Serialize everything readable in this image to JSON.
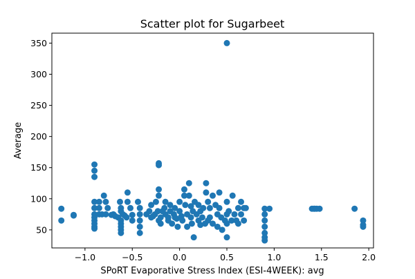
{
  "chart_data": {
    "type": "scatter",
    "title": "Scatter plot for Sugarbeet",
    "xlabel": "SPoRT Evaporative Stress Index (ESI-4WEEK): avg",
    "ylabel": "Average",
    "xlim": [
      -1.35,
      2.05
    ],
    "ylim": [
      21,
      366
    ],
    "xticks": [
      -1.0,
      -0.5,
      0.0,
      0.5,
      1.0,
      1.5,
      2.0
    ],
    "xtick_labels": [
      "−1.0",
      "−0.5",
      "0.0",
      "0.5",
      "1.0",
      "1.5",
      "2.0"
    ],
    "yticks": [
      50,
      100,
      150,
      200,
      250,
      300,
      350
    ],
    "ytick_labels": [
      "50",
      "100",
      "150",
      "200",
      "250",
      "300",
      "350"
    ],
    "grid": false,
    "marker_color": "#1f77b4",
    "series": [
      {
        "x": [
          -1.25,
          -1.25,
          -1.12,
          -1.12,
          -0.9,
          -0.9,
          -0.9,
          -0.9,
          -0.9,
          -0.9,
          -0.9,
          -0.9,
          -0.9,
          -0.9,
          -0.9,
          -0.85,
          -0.85,
          -0.85,
          -0.82,
          -0.8,
          -0.78,
          -0.78,
          -0.76,
          -0.72,
          -0.7,
          -0.68,
          -0.65,
          -0.63,
          -0.62,
          -0.62,
          -0.62,
          -0.62,
          -0.62,
          -0.62,
          -0.62,
          -0.6,
          -0.58,
          -0.56,
          -0.55,
          -0.55,
          -0.52,
          -0.5,
          -0.5,
          -0.44,
          -0.42,
          -0.42,
          -0.42,
          -0.42,
          -0.42,
          -0.35,
          -0.32,
          -0.3,
          -0.3,
          -0.28,
          -0.26,
          -0.25,
          -0.23,
          -0.22,
          -0.22,
          -0.22,
          -0.22,
          -0.22,
          -0.2,
          -0.2,
          -0.18,
          -0.16,
          -0.15,
          -0.15,
          -0.12,
          -0.12,
          -0.1,
          -0.1,
          -0.08,
          -0.06,
          -0.05,
          -0.05,
          -0.03,
          -0.02,
          0.0,
          0.0,
          0.02,
          0.03,
          0.05,
          0.05,
          0.06,
          0.08,
          0.08,
          0.1,
          0.1,
          0.12,
          0.12,
          0.13,
          0.14,
          0.15,
          0.16,
          0.18,
          0.2,
          0.2,
          0.22,
          0.22,
          0.24,
          0.25,
          0.27,
          0.28,
          0.28,
          0.3,
          0.3,
          0.32,
          0.32,
          0.35,
          0.35,
          0.38,
          0.4,
          0.4,
          0.42,
          0.42,
          0.44,
          0.45,
          0.48,
          0.5,
          0.5,
          0.5,
          0.5,
          0.5,
          0.52,
          0.55,
          0.56,
          0.58,
          0.6,
          0.62,
          0.62,
          0.65,
          0.65,
          0.68,
          0.68,
          0.7,
          0.9,
          0.9,
          0.9,
          0.9,
          0.9,
          0.9,
          0.9,
          0.95,
          1.4,
          1.42,
          1.43,
          1.45,
          1.48,
          1.85,
          1.94,
          1.94,
          1.94
        ],
        "y": [
          84,
          65,
          74,
          73,
          155,
          145,
          135,
          95,
          85,
          75,
          70,
          65,
          60,
          55,
          52,
          95,
          85,
          75,
          75,
          105,
          95,
          75,
          85,
          74,
          75,
          72,
          70,
          95,
          85,
          80,
          65,
          60,
          55,
          50,
          45,
          75,
          73,
          70,
          110,
          95,
          85,
          74,
          65,
          95,
          85,
          75,
          65,
          55,
          45,
          75,
          80,
          90,
          70,
          72,
          75,
          95,
          80,
          157,
          154,
          115,
          105,
          65,
          70,
          60,
          80,
          85,
          95,
          75,
          70,
          65,
          80,
          90,
          60,
          75,
          85,
          70,
          68,
          55,
          95,
          80,
          72,
          65,
          115,
          105,
          90,
          75,
          55,
          125,
          105,
          88,
          70,
          60,
          80,
          38,
          95,
          75,
          90,
          65,
          80,
          58,
          70,
          85,
          60,
          125,
          110,
          95,
          65,
          85,
          70,
          60,
          105,
          90,
          75,
          55,
          110,
          85,
          70,
          50,
          65,
          350,
          95,
          75,
          60,
          38,
          80,
          65,
          105,
          75,
          65,
          85,
          60,
          95,
          75,
          85,
          65,
          85,
          84,
          75,
          65,
          55,
          45,
          38,
          33,
          84,
          84,
          84,
          84,
          84,
          84,
          84,
          65,
          58,
          55
        ]
      }
    ]
  }
}
